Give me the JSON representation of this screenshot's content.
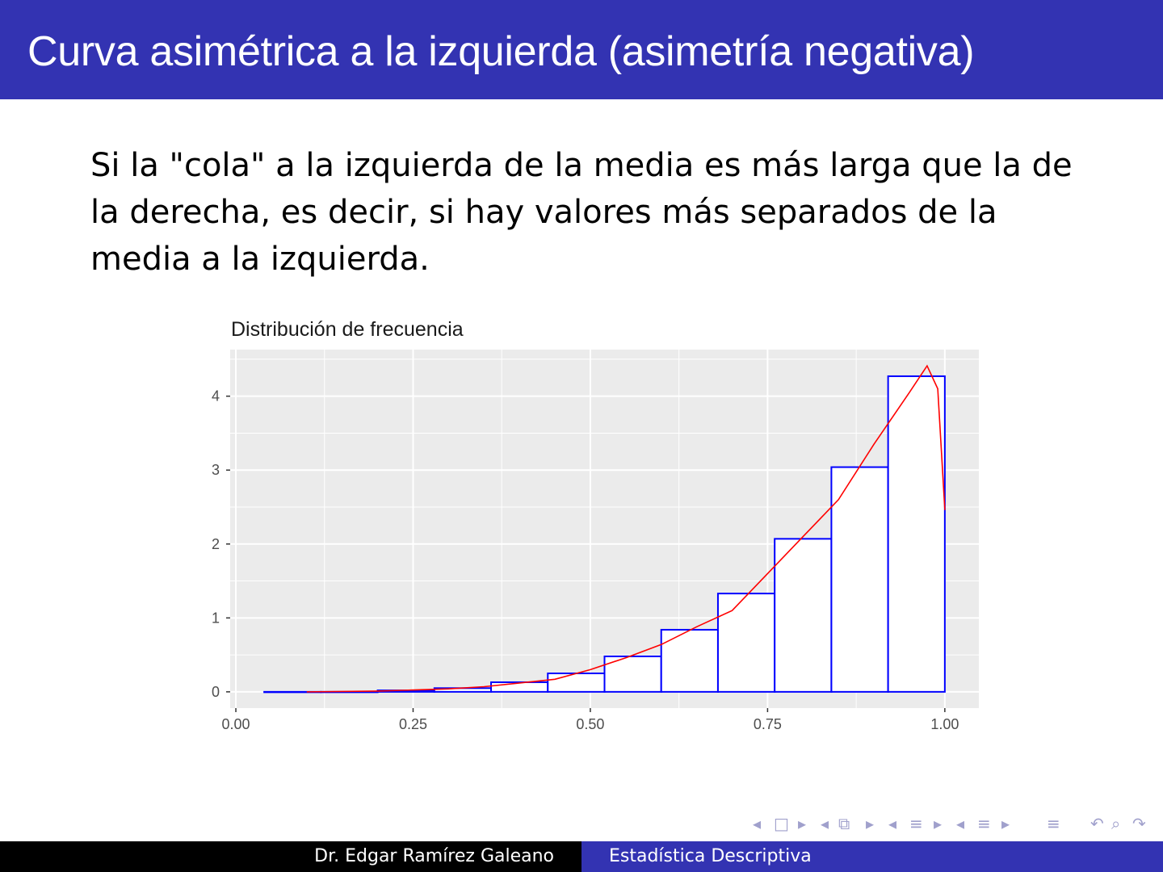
{
  "slide": {
    "title": "Curva asimétrica a la izquierda (asimetría negativa)",
    "body": "Si la \"cola\" a la izquierda de la media es más larga que la de la derecha, es decir, si hay valores más separados de la media a la izquierda."
  },
  "footer": {
    "author": "Dr.  Edgar Ramírez Galeano",
    "course": "Estadística Descriptiva"
  },
  "nav_icons": [
    "arrow-left",
    "frame",
    "arrow-right",
    "arrow-left",
    "subsection",
    "arrow-right",
    "arrow-left",
    "section",
    "arrow-right",
    "arrow-left",
    "section-list",
    "arrow-right",
    "toc",
    "undo",
    "search",
    "redo"
  ],
  "colors": {
    "header": "#3333b2",
    "bar_stroke": "#0000ff",
    "bar_fill": "#ffffff",
    "density": "#ff0000",
    "panel": "#ebebeb"
  },
  "chart_data": {
    "type": "bar",
    "title": "Distribución de frecuencia",
    "xlabel": "",
    "ylabel": "",
    "xlim": [
      -0.008,
      1.048
    ],
    "ylim": [
      -0.22,
      4.63
    ],
    "grid": true,
    "xticks": [
      "0.00",
      "0.25",
      "0.50",
      "0.75",
      "1.00"
    ],
    "yticks": [
      "0",
      "1",
      "2",
      "3",
      "4"
    ],
    "bins": [
      {
        "x0": 0.04,
        "x1": 0.12,
        "value": 0
      },
      {
        "x0": 0.12,
        "x1": 0.2,
        "value": 0
      },
      {
        "x0": 0.2,
        "x1": 0.28,
        "value": 0.02
      },
      {
        "x0": 0.28,
        "x1": 0.36,
        "value": 0.05
      },
      {
        "x0": 0.36,
        "x1": 0.44,
        "value": 0.13
      },
      {
        "x0": 0.44,
        "x1": 0.52,
        "value": 0.25
      },
      {
        "x0": 0.52,
        "x1": 0.6,
        "value": 0.48
      },
      {
        "x0": 0.6,
        "x1": 0.68,
        "value": 0.84
      },
      {
        "x0": 0.68,
        "x1": 0.76,
        "value": 1.33
      },
      {
        "x0": 0.76,
        "x1": 0.84,
        "value": 2.07
      },
      {
        "x0": 0.84,
        "x1": 0.92,
        "value": 3.04
      },
      {
        "x0": 0.92,
        "x1": 1.0,
        "value": 4.27
      }
    ],
    "density": {
      "x": [
        0.1,
        0.2,
        0.3,
        0.35,
        0.4,
        0.45,
        0.5,
        0.55,
        0.6,
        0.65,
        0.7,
        0.75,
        0.8,
        0.85,
        0.9,
        0.95,
        0.975,
        0.99,
        1.0
      ],
      "y": [
        0,
        0.01,
        0.04,
        0.07,
        0.12,
        0.17,
        0.3,
        0.46,
        0.64,
        0.88,
        1.1,
        1.6,
        2.1,
        2.6,
        3.35,
        4.05,
        4.41,
        4.1,
        2.46
      ]
    }
  }
}
